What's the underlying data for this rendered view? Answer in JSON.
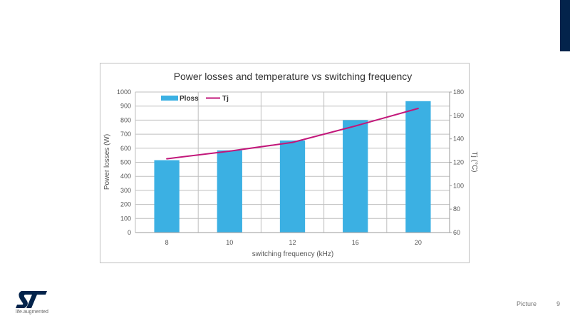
{
  "slide": {
    "footer_label": "Picture",
    "page_number": "9",
    "brand_tagline": "life.augmented",
    "logo_text": "ST",
    "accent_color": "#03234b"
  },
  "chart_data": {
    "type": "bar",
    "title": "Power losses and temperature vs switching frequency",
    "xlabel": "switching frequency (kHz)",
    "ylabel": "Power losses (W)",
    "y2label": "Tj (°C)",
    "categories": [
      "8",
      "10",
      "12",
      "16",
      "20"
    ],
    "ylim": [
      0,
      1000
    ],
    "y2lim": [
      60,
      180
    ],
    "yticks": [
      0,
      100,
      200,
      300,
      400,
      500,
      600,
      700,
      800,
      900,
      1000
    ],
    "y2ticks": [
      60,
      80,
      100,
      120,
      140,
      160,
      180
    ],
    "grid": true,
    "legend_placement": "top-left",
    "series": [
      {
        "name": "Ploss",
        "type": "bar",
        "axis": "left",
        "color": "#3bb0e3",
        "values": [
          515,
          585,
          655,
          800,
          935
        ]
      },
      {
        "name": "Tj",
        "type": "line",
        "axis": "right",
        "color": "#c2177a",
        "values": [
          123,
          129.5,
          137,
          151,
          166
        ]
      }
    ]
  }
}
